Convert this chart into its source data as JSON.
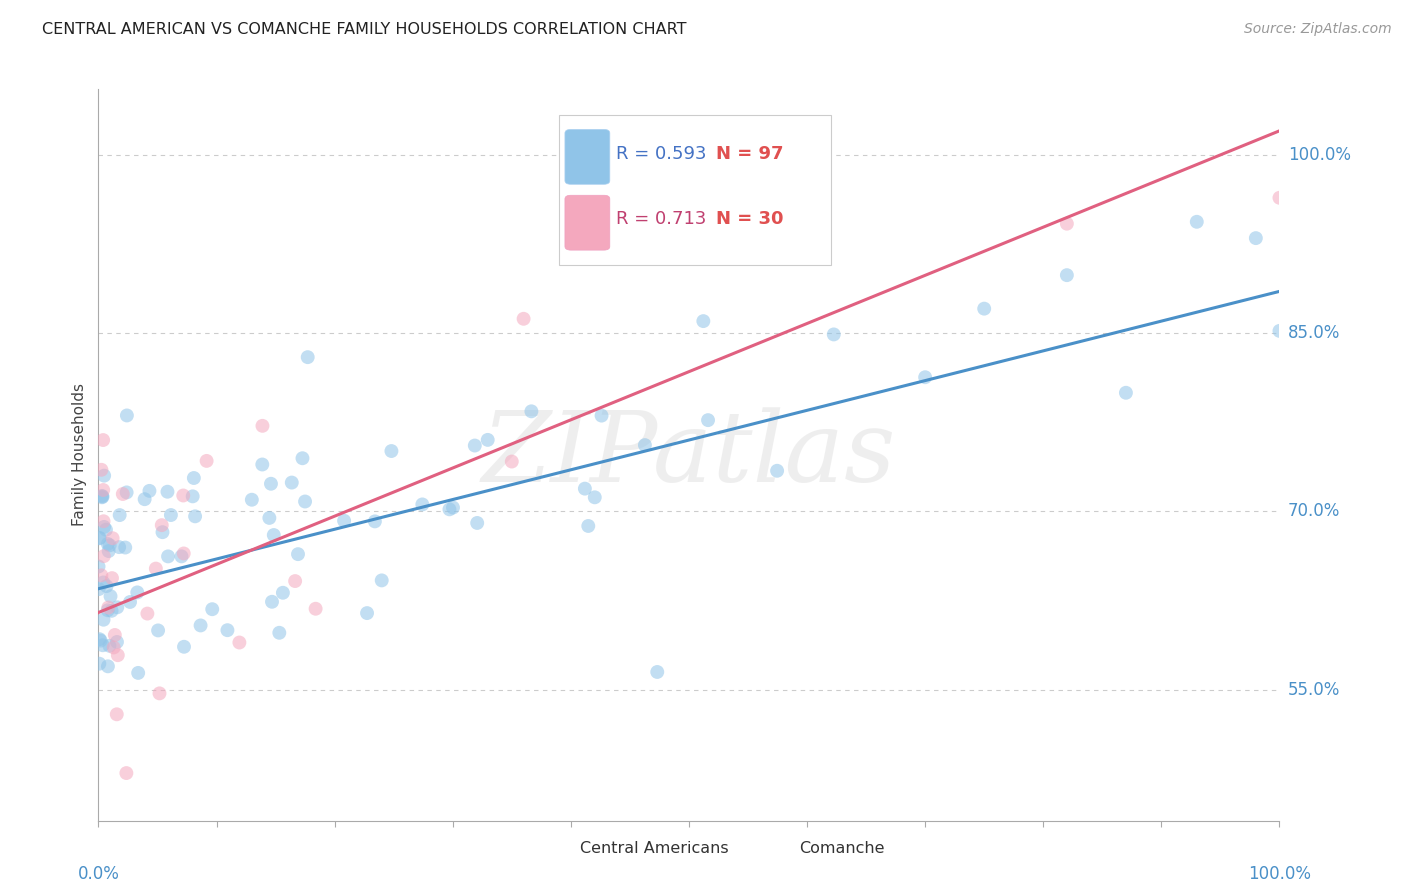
{
  "title": "CENTRAL AMERICAN VS COMANCHE FAMILY HOUSEHOLDS CORRELATION CHART",
  "source": "Source: ZipAtlas.com",
  "ylabel": "Family Households",
  "ytick_vals": [
    0.55,
    0.7,
    0.85,
    1.0
  ],
  "ytick_labels": [
    "55.0%",
    "70.0%",
    "85.0%",
    "100.0%"
  ],
  "xlim": [
    0.0,
    1.0
  ],
  "ylim": [
    0.44,
    1.055
  ],
  "watermark": "ZIPatlas",
  "blue_color": "#90c4e8",
  "pink_color": "#f4a8be",
  "blue_line_color": "#4a90c8",
  "pink_line_color": "#e06080",
  "ytick_color": "#4a90c8",
  "scatter_alpha": 0.55,
  "marker_size": 100,
  "grid_color": "#cccccc",
  "background_color": "#ffffff",
  "title_fontsize": 11.5,
  "source_fontsize": 10,
  "legend_r_blue_color": "#4472c4",
  "legend_n_red_color": "#e05050",
  "legend_r_pink_color": "#c04070",
  "blue_line_x0": 0.0,
  "blue_line_y0": 0.635,
  "blue_line_x1": 1.0,
  "blue_line_y1": 0.885,
  "pink_line_x0": 0.0,
  "pink_line_y0": 0.615,
  "pink_line_x1": 1.0,
  "pink_line_y1": 1.02
}
